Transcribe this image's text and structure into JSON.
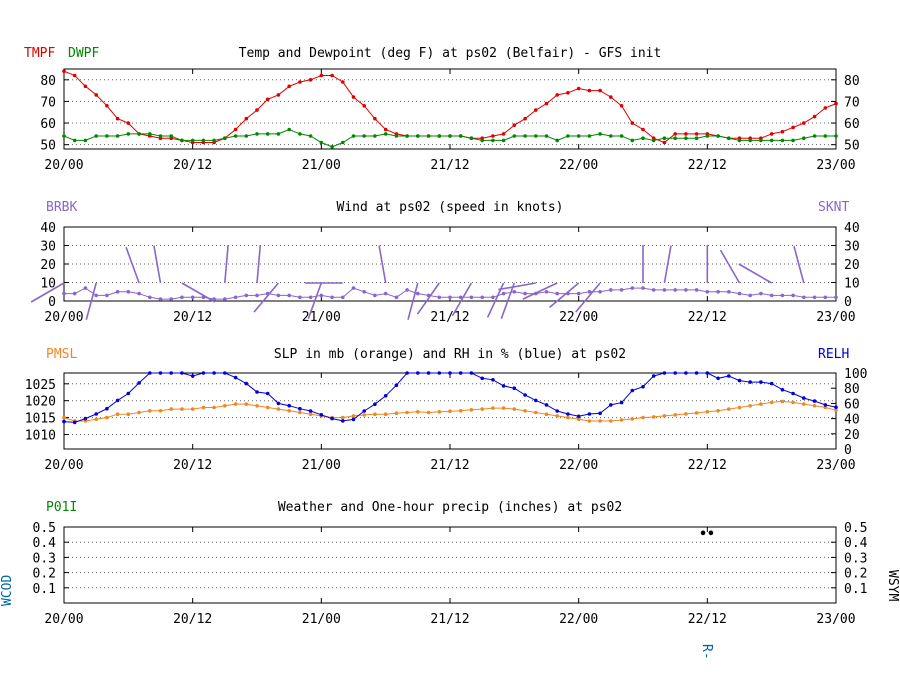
{
  "colors": {
    "temp": "#e00000",
    "dew": "#008800",
    "wind": "#8866cc",
    "pmsl": "#ee8822",
    "relh": "#0000dd",
    "precip_code": "#008800",
    "side_label": "#0066aa",
    "axis": "#000000",
    "grid": "#666666"
  },
  "chart_data": [
    {
      "id": "temp",
      "type": "line",
      "title": "Temp and Dewpoint (deg F) at ps02  (Belfair) - GFS init",
      "left_labels": [
        "TMPF",
        "DWPF"
      ],
      "x_tick_labels": [
        "20/00",
        "20/12",
        "21/00",
        "21/12",
        "22/00",
        "22/12",
        "23/00"
      ],
      "xlim": [
        0,
        72
      ],
      "ylim": [
        48,
        85
      ],
      "y_ticks": [
        50,
        60,
        70,
        80
      ],
      "grid": true,
      "series": [
        {
          "key": "TMPF",
          "color": "temp",
          "x": [
            0,
            1,
            2,
            3,
            4,
            5,
            6,
            7,
            8,
            9,
            10,
            11,
            12,
            13,
            14,
            15,
            16,
            17,
            18,
            19,
            20,
            21,
            22,
            23,
            24,
            25,
            26,
            27,
            28,
            29,
            30,
            31,
            32,
            33,
            34,
            35,
            36,
            37,
            38,
            39,
            40,
            41,
            42,
            43,
            44,
            45,
            46,
            47,
            48,
            49,
            50,
            51,
            52,
            53,
            54,
            55,
            56,
            57,
            58,
            59,
            60,
            61,
            62,
            63,
            64,
            65,
            66,
            67,
            68,
            69,
            70,
            71,
            72
          ],
          "y": [
            84,
            82,
            77,
            73,
            68,
            62,
            60,
            55,
            54,
            53,
            53,
            52,
            51,
            51,
            51,
            53,
            57,
            62,
            66,
            71,
            73,
            77,
            79,
            80,
            82,
            82,
            79,
            72,
            68,
            62,
            57,
            55,
            54,
            54,
            54,
            54,
            54,
            54,
            53,
            53,
            54,
            55,
            59,
            62,
            66,
            69,
            73,
            74,
            76,
            75,
            75,
            72,
            68,
            60,
            57,
            53,
            51,
            55,
            55,
            55,
            55,
            54,
            53,
            53,
            53,
            53,
            55,
            56,
            58,
            60,
            63,
            67,
            69
          ]
        },
        {
          "key": "DWPF",
          "color": "dew",
          "x": [
            0,
            1,
            2,
            3,
            4,
            5,
            6,
            7,
            8,
            9,
            10,
            11,
            12,
            13,
            14,
            15,
            16,
            17,
            18,
            19,
            20,
            21,
            22,
            23,
            24,
            25,
            26,
            27,
            28,
            29,
            30,
            31,
            32,
            33,
            34,
            35,
            36,
            37,
            38,
            39,
            40,
            41,
            42,
            43,
            44,
            45,
            46,
            47,
            48,
            49,
            50,
            51,
            52,
            53,
            54,
            55,
            56,
            57,
            58,
            59,
            60,
            61,
            62,
            63,
            64,
            65,
            66,
            67,
            68,
            69,
            70,
            71,
            72
          ],
          "y": [
            54,
            52,
            52,
            54,
            54,
            54,
            55,
            55,
            55,
            54,
            54,
            52,
            52,
            52,
            52,
            53,
            54,
            54,
            55,
            55,
            55,
            57,
            55,
            54,
            51,
            49,
            51,
            54,
            54,
            54,
            55,
            54,
            54,
            54,
            54,
            54,
            54,
            54,
            53,
            52,
            52,
            52,
            54,
            54,
            54,
            54,
            52,
            54,
            54,
            54,
            55,
            54,
            54,
            52,
            53,
            52,
            53,
            53,
            53,
            53,
            54,
            54,
            53,
            52,
            52,
            52,
            52,
            52,
            52,
            53,
            54,
            54,
            54
          ]
        }
      ]
    },
    {
      "id": "wind",
      "type": "line",
      "title": "Wind at  ps02  (speed in knots)",
      "left_label": "BRBK",
      "right_label": "SKNT",
      "x_tick_labels": [
        "20/00",
        "20/12",
        "21/00",
        "21/12",
        "22/00",
        "22/12",
        "23/00"
      ],
      "xlim": [
        0,
        72
      ],
      "ylim": [
        0,
        40
      ],
      "y_ticks": [
        0,
        10,
        20,
        30,
        40
      ],
      "grid": true,
      "series": [
        {
          "key": "SKNT",
          "color": "wind",
          "x": [
            0,
            1,
            2,
            3,
            4,
            5,
            6,
            7,
            8,
            9,
            10,
            11,
            12,
            13,
            14,
            15,
            16,
            17,
            18,
            19,
            20,
            21,
            22,
            23,
            24,
            25,
            26,
            27,
            28,
            29,
            30,
            31,
            32,
            33,
            34,
            35,
            36,
            37,
            38,
            39,
            40,
            41,
            42,
            43,
            44,
            45,
            46,
            47,
            48,
            49,
            50,
            51,
            52,
            53,
            54,
            55,
            56,
            57,
            58,
            59,
            60,
            61,
            62,
            63,
            64,
            65,
            66,
            67,
            68,
            69,
            70,
            71,
            72
          ],
          "y": [
            4,
            4,
            7,
            3,
            3,
            5,
            5,
            4,
            2,
            1,
            1,
            2,
            2,
            2,
            1,
            1,
            2,
            3,
            3,
            4,
            3,
            3,
            2,
            2,
            3,
            2,
            2,
            7,
            5,
            3,
            4,
            2,
            6,
            4,
            3,
            2,
            2,
            2,
            2,
            2,
            2,
            4,
            5,
            4,
            4,
            5,
            4,
            4,
            4,
            5,
            5,
            6,
            6,
            7,
            7,
            6,
            6,
            6,
            6,
            6,
            5,
            5,
            5,
            4,
            3,
            4,
            3,
            3,
            3,
            2,
            2,
            2,
            2
          ]
        }
      ],
      "barbs": [
        {
          "x": 0,
          "dir": 240,
          "spd": 4
        },
        {
          "x": 3,
          "dir": 195,
          "spd": 3
        },
        {
          "x": 7,
          "dir": 340,
          "spd": 4
        },
        {
          "x": 9,
          "dir": 350,
          "spd": 1
        },
        {
          "x": 11,
          "dir": 120,
          "spd": 2
        },
        {
          "x": 15,
          "dir": 5,
          "spd": 1
        },
        {
          "x": 18,
          "dir": 5,
          "spd": 3
        },
        {
          "x": 20,
          "dir": 220,
          "spd": 3
        },
        {
          "x": 24,
          "dir": 200,
          "spd": 3
        },
        {
          "x": 26,
          "dir": 270,
          "spd": 2
        },
        {
          "x": 30,
          "dir": 350,
          "spd": 4
        },
        {
          "x": 33,
          "dir": 195,
          "spd": 4
        },
        {
          "x": 35,
          "dir": 215,
          "spd": 2
        },
        {
          "x": 38,
          "dir": 210,
          "spd": 2
        },
        {
          "x": 41,
          "dir": 205,
          "spd": 4
        },
        {
          "x": 42,
          "dir": 200,
          "spd": 5
        },
        {
          "x": 44,
          "dir": 260,
          "spd": 4
        },
        {
          "x": 46,
          "dir": 245,
          "spd": 5
        },
        {
          "x": 48,
          "dir": 230,
          "spd": 5
        },
        {
          "x": 50,
          "dir": 220,
          "spd": 6
        },
        {
          "x": 54,
          "dir": 0,
          "spd": 6
        },
        {
          "x": 56,
          "dir": 10,
          "spd": 6
        },
        {
          "x": 60,
          "dir": 0,
          "spd": 5
        },
        {
          "x": 63,
          "dir": 330,
          "spd": 4
        },
        {
          "x": 66,
          "dir": 300,
          "spd": 3
        },
        {
          "x": 69,
          "dir": 345,
          "spd": 2
        }
      ]
    },
    {
      "id": "slp",
      "type": "line",
      "title": "SLP in mb (orange) and RH in % (blue) at  ps02",
      "left_label": "PMSL",
      "right_label": "RELH",
      "x_tick_labels": [
        "20/00",
        "20/12",
        "21/00",
        "21/12",
        "22/00",
        "22/12",
        "23/00"
      ],
      "xlim": [
        0,
        72
      ],
      "left_ylim": [
        1005.7,
        1028.2
      ],
      "left_ticks": [
        1010,
        1015,
        1020,
        1025
      ],
      "right_ylim": [
        0,
        100
      ],
      "right_ticks": [
        0,
        20,
        40,
        60,
        80,
        100
      ],
      "grid": true,
      "series": [
        {
          "key": "PMSL",
          "color": "pmsl",
          "axis": "left",
          "x": [
            0,
            1,
            2,
            3,
            4,
            5,
            6,
            7,
            8,
            9,
            10,
            11,
            12,
            13,
            14,
            15,
            16,
            17,
            18,
            19,
            20,
            21,
            22,
            23,
            24,
            25,
            26,
            27,
            28,
            29,
            30,
            31,
            32,
            33,
            34,
            35,
            36,
            37,
            38,
            39,
            40,
            41,
            42,
            43,
            44,
            45,
            46,
            47,
            48,
            49,
            50,
            51,
            52,
            53,
            54,
            55,
            56,
            57,
            58,
            59,
            60,
            61,
            62,
            63,
            64,
            65,
            66,
            67,
            68,
            69,
            70,
            71,
            72
          ],
          "y": [
            1015,
            1014,
            1014,
            1014.5,
            1015,
            1016,
            1016,
            1016.5,
            1017,
            1017,
            1017.5,
            1017.5,
            1017.5,
            1018,
            1018,
            1018.5,
            1019,
            1019,
            1018.5,
            1018,
            1017.5,
            1017,
            1016.5,
            1016,
            1015.5,
            1015,
            1015,
            1015.5,
            1015.8,
            1016,
            1016,
            1016.3,
            1016.5,
            1016.7,
            1016.5,
            1016.7,
            1016.9,
            1017,
            1017.3,
            1017.5,
            1017.8,
            1017.8,
            1017.5,
            1017,
            1016.5,
            1016,
            1015.5,
            1015,
            1014.5,
            1014,
            1014,
            1014,
            1014.3,
            1014.6,
            1015,
            1015.2,
            1015.5,
            1015.8,
            1016.1,
            1016.4,
            1016.7,
            1017,
            1017.5,
            1018,
            1018.5,
            1019,
            1019.5,
            1019.8,
            1019.5,
            1019,
            1018.5,
            1018,
            1017.2
          ]
        },
        {
          "key": "RELH",
          "color": "relh",
          "axis": "right",
          "x": [
            0,
            1,
            2,
            3,
            4,
            5,
            6,
            7,
            8,
            9,
            10,
            11,
            12,
            13,
            14,
            15,
            16,
            17,
            18,
            19,
            20,
            21,
            22,
            23,
            24,
            25,
            26,
            27,
            28,
            29,
            30,
            31,
            32,
            33,
            34,
            35,
            36,
            37,
            38,
            39,
            40,
            41,
            42,
            43,
            44,
            45,
            46,
            47,
            48,
            49,
            50,
            51,
            52,
            53,
            54,
            55,
            56,
            57,
            58,
            59,
            60,
            61,
            62,
            63,
            64,
            65,
            66,
            67,
            68,
            69,
            70,
            71,
            72
          ],
          "y": [
            36,
            35,
            40,
            46,
            53,
            64,
            73,
            87,
            100,
            100,
            100,
            100,
            96,
            100,
            100,
            100,
            94,
            86,
            75,
            73,
            60,
            57,
            53,
            50,
            45,
            40,
            37,
            39,
            50,
            59,
            70,
            84,
            100,
            100,
            100,
            100,
            100,
            100,
            100,
            93,
            91,
            83,
            80,
            71,
            64,
            58,
            50,
            46,
            43,
            46,
            47,
            58,
            61,
            77,
            82,
            96,
            100,
            100,
            100,
            100,
            100,
            93,
            96,
            90,
            88,
            88,
            86,
            78,
            73,
            67,
            63,
            58,
            55
          ]
        }
      ]
    },
    {
      "id": "precip",
      "type": "scatter",
      "title": "Weather and One-hour precip (inches) at  ps02",
      "left_label": "P01I",
      "left_side_label": "WCOD",
      "right_side_label": "WSYM",
      "x_tick_labels": [
        "20/00",
        "20/12",
        "21/00",
        "21/12",
        "22/00",
        "22/12",
        "23/00"
      ],
      "xlim": [
        0,
        72
      ],
      "ylim": [
        0,
        0.5
      ],
      "y_ticks": [
        0.1,
        0.2,
        0.3,
        0.4,
        0.5
      ],
      "grid": true,
      "weather_symbols": [
        "••"
      ],
      "weather_codes": [
        "R-"
      ]
    }
  ]
}
